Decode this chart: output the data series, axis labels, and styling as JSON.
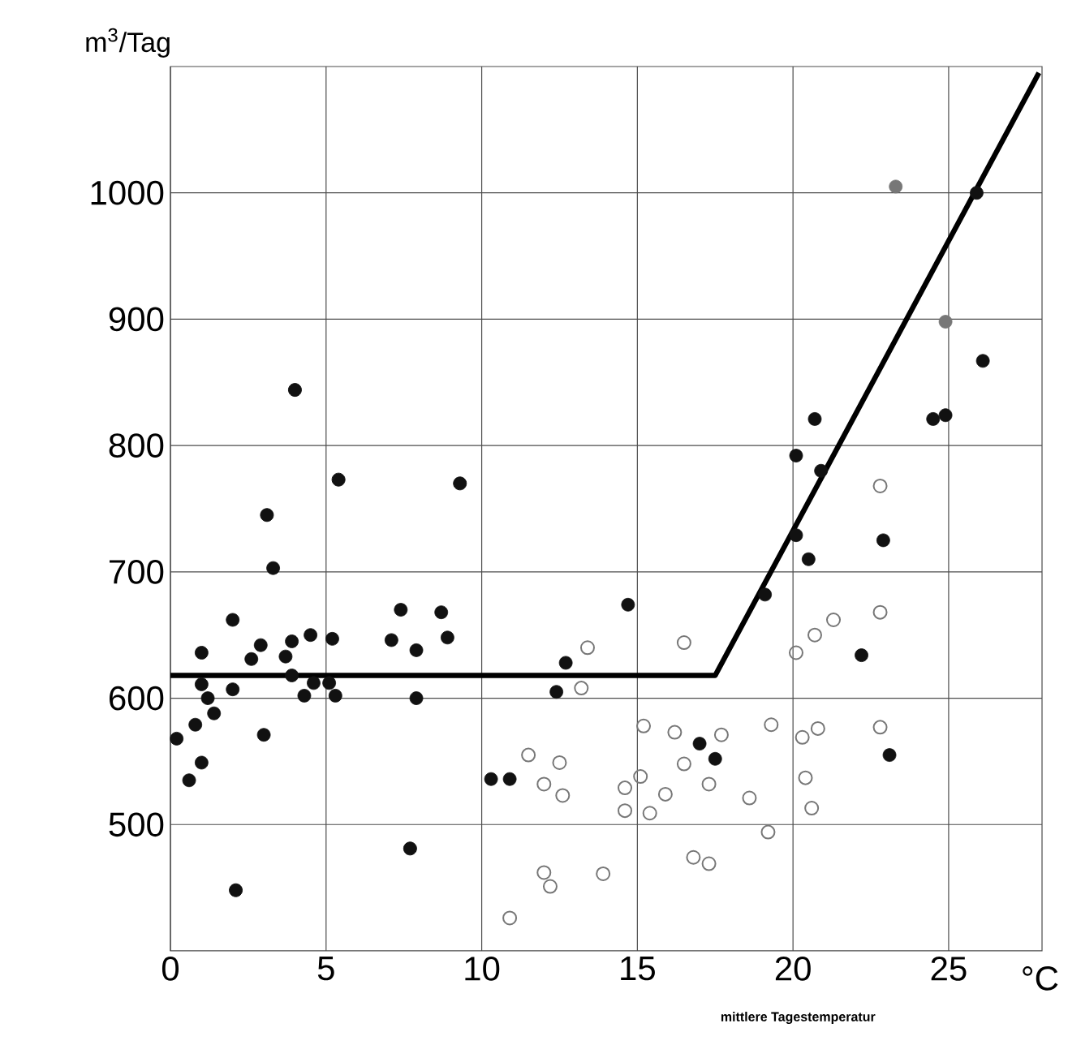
{
  "chart_data": {
    "type": "scatter",
    "xlabel": "mittlere Tagestemperatur",
    "ylabel": "m$^{3}$/Tag",
    "annotations": [
      "°C"
    ],
    "xlim": [
      0,
      28
    ],
    "ylim": [
      400,
      1100
    ],
    "xticks": [
      0,
      5,
      10,
      15,
      20,
      25
    ],
    "yticks": [
      500,
      600,
      700,
      800,
      900,
      1000
    ],
    "grid": true,
    "marker": "circle",
    "series": [
      {
        "color": "#111111",
        "x": [
          3.3,
          2.0,
          7.4,
          8.7,
          1.0,
          2.6,
          2.9,
          3.7,
          3.9,
          4.5,
          5.2,
          7.1,
          7.9,
          8.9,
          1.0,
          1.2,
          1.4,
          2.0,
          3.9,
          4.3,
          4.6,
          5.1,
          5.3,
          7.9,
          0.8,
          0.2,
          1.0,
          0.6,
          3.0,
          10.3,
          10.9,
          25.9,
          26.1,
          24.5,
          24.9,
          20.7,
          20.1,
          20.9,
          20.1,
          20.5,
          22.9,
          19.1,
          14.7,
          12.7,
          12.4,
          22.2,
          17.0,
          17.5,
          23.1
        ],
        "values": [
          703,
          662,
          670,
          668,
          636,
          631,
          642,
          633,
          645,
          650,
          647,
          646,
          638,
          648,
          611,
          600,
          588,
          607,
          618,
          602,
          612,
          612,
          602,
          600,
          579,
          568,
          549,
          535,
          571,
          536,
          536,
          1000,
          867,
          821,
          824,
          821,
          792,
          780,
          729,
          710,
          725,
          682,
          674,
          628,
          605,
          634,
          564,
          552,
          555
        ]
      },
      {
        "color": "#777777",
        "x": [
          11.5,
          10.9,
          22.8,
          13.4,
          13.2,
          16.5,
          22.8,
          21.3,
          20.7,
          20.1,
          15.2,
          16.2,
          17.7,
          19.3,
          20.8,
          20.3,
          22.8,
          16.5,
          17.3,
          15.1,
          14.6,
          15.9,
          14.6,
          15.4,
          18.6,
          20.4,
          20.6,
          19.2,
          16.8,
          17.3,
          13.9,
          12.0,
          12.2,
          12.5,
          12.0,
          12.6
        ],
        "values": [
          555,
          426,
          768,
          640,
          608,
          644,
          668,
          662,
          650,
          636,
          578,
          573,
          571,
          579,
          576,
          569,
          577,
          548,
          532,
          538,
          529,
          524,
          511,
          509,
          521,
          537,
          513,
          494,
          474,
          469,
          461,
          462,
          451,
          549,
          532,
          523
        ]
      },
      {
        "color": "#111111",
        "x": [
          2.1,
          7.7,
          4.0,
          5.4,
          9.3,
          3.1
        ],
        "values": [
          448,
          481,
          844,
          773,
          770,
          745
        ]
      },
      {
        "color": "#777777",
        "x": [
          23.3,
          24.9
        ],
        "values": [
          1005,
          898
        ]
      },
      {
        "type": "line",
        "color": "#000000",
        "marker": "none",
        "x": [
          0,
          17.5,
          27.9
        ],
        "values": [
          618,
          618,
          1095
        ]
      }
    ]
  }
}
